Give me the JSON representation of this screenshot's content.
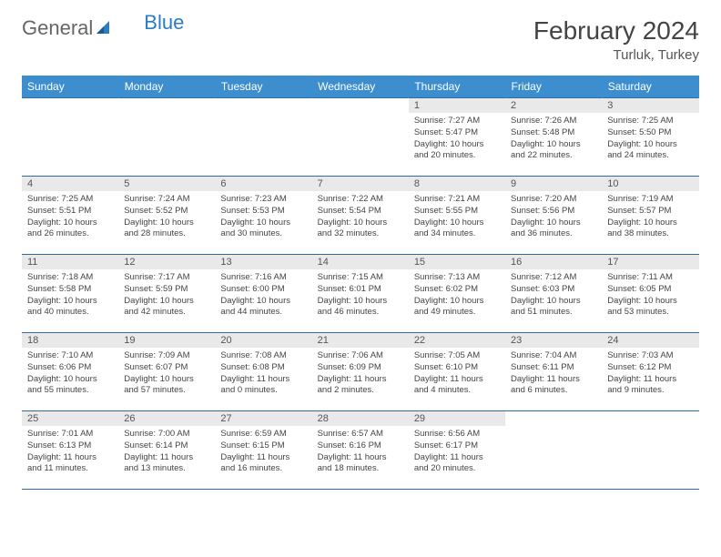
{
  "brand": {
    "part1": "General",
    "part2": "Blue"
  },
  "title": "February 2024",
  "location": "Turluk, Turkey",
  "colors": {
    "header_bg": "#3d8ecf",
    "header_text": "#ffffff",
    "row_border": "#2c6ca8",
    "daynum_bg": "#e9e9e9",
    "text": "#444444",
    "brand_blue": "#2c7bc4"
  },
  "columns": [
    "Sunday",
    "Monday",
    "Tuesday",
    "Wednesday",
    "Thursday",
    "Friday",
    "Saturday"
  ],
  "weeks": [
    [
      null,
      null,
      null,
      null,
      {
        "n": "1",
        "sr": "7:27 AM",
        "ss": "5:47 PM",
        "dl": "10 hours and 20 minutes."
      },
      {
        "n": "2",
        "sr": "7:26 AM",
        "ss": "5:48 PM",
        "dl": "10 hours and 22 minutes."
      },
      {
        "n": "3",
        "sr": "7:25 AM",
        "ss": "5:50 PM",
        "dl": "10 hours and 24 minutes."
      }
    ],
    [
      {
        "n": "4",
        "sr": "7:25 AM",
        "ss": "5:51 PM",
        "dl": "10 hours and 26 minutes."
      },
      {
        "n": "5",
        "sr": "7:24 AM",
        "ss": "5:52 PM",
        "dl": "10 hours and 28 minutes."
      },
      {
        "n": "6",
        "sr": "7:23 AM",
        "ss": "5:53 PM",
        "dl": "10 hours and 30 minutes."
      },
      {
        "n": "7",
        "sr": "7:22 AM",
        "ss": "5:54 PM",
        "dl": "10 hours and 32 minutes."
      },
      {
        "n": "8",
        "sr": "7:21 AM",
        "ss": "5:55 PM",
        "dl": "10 hours and 34 minutes."
      },
      {
        "n": "9",
        "sr": "7:20 AM",
        "ss": "5:56 PM",
        "dl": "10 hours and 36 minutes."
      },
      {
        "n": "10",
        "sr": "7:19 AM",
        "ss": "5:57 PM",
        "dl": "10 hours and 38 minutes."
      }
    ],
    [
      {
        "n": "11",
        "sr": "7:18 AM",
        "ss": "5:58 PM",
        "dl": "10 hours and 40 minutes."
      },
      {
        "n": "12",
        "sr": "7:17 AM",
        "ss": "5:59 PM",
        "dl": "10 hours and 42 minutes."
      },
      {
        "n": "13",
        "sr": "7:16 AM",
        "ss": "6:00 PM",
        "dl": "10 hours and 44 minutes."
      },
      {
        "n": "14",
        "sr": "7:15 AM",
        "ss": "6:01 PM",
        "dl": "10 hours and 46 minutes."
      },
      {
        "n": "15",
        "sr": "7:13 AM",
        "ss": "6:02 PM",
        "dl": "10 hours and 49 minutes."
      },
      {
        "n": "16",
        "sr": "7:12 AM",
        "ss": "6:03 PM",
        "dl": "10 hours and 51 minutes."
      },
      {
        "n": "17",
        "sr": "7:11 AM",
        "ss": "6:05 PM",
        "dl": "10 hours and 53 minutes."
      }
    ],
    [
      {
        "n": "18",
        "sr": "7:10 AM",
        "ss": "6:06 PM",
        "dl": "10 hours and 55 minutes."
      },
      {
        "n": "19",
        "sr": "7:09 AM",
        "ss": "6:07 PM",
        "dl": "10 hours and 57 minutes."
      },
      {
        "n": "20",
        "sr": "7:08 AM",
        "ss": "6:08 PM",
        "dl": "11 hours and 0 minutes."
      },
      {
        "n": "21",
        "sr": "7:06 AM",
        "ss": "6:09 PM",
        "dl": "11 hours and 2 minutes."
      },
      {
        "n": "22",
        "sr": "7:05 AM",
        "ss": "6:10 PM",
        "dl": "11 hours and 4 minutes."
      },
      {
        "n": "23",
        "sr": "7:04 AM",
        "ss": "6:11 PM",
        "dl": "11 hours and 6 minutes."
      },
      {
        "n": "24",
        "sr": "7:03 AM",
        "ss": "6:12 PM",
        "dl": "11 hours and 9 minutes."
      }
    ],
    [
      {
        "n": "25",
        "sr": "7:01 AM",
        "ss": "6:13 PM",
        "dl": "11 hours and 11 minutes."
      },
      {
        "n": "26",
        "sr": "7:00 AM",
        "ss": "6:14 PM",
        "dl": "11 hours and 13 minutes."
      },
      {
        "n": "27",
        "sr": "6:59 AM",
        "ss": "6:15 PM",
        "dl": "11 hours and 16 minutes."
      },
      {
        "n": "28",
        "sr": "6:57 AM",
        "ss": "6:16 PM",
        "dl": "11 hours and 18 minutes."
      },
      {
        "n": "29",
        "sr": "6:56 AM",
        "ss": "6:17 PM",
        "dl": "11 hours and 20 minutes."
      },
      null,
      null
    ]
  ],
  "labels": {
    "sunrise": "Sunrise:",
    "sunset": "Sunset:",
    "daylight": "Daylight:"
  }
}
